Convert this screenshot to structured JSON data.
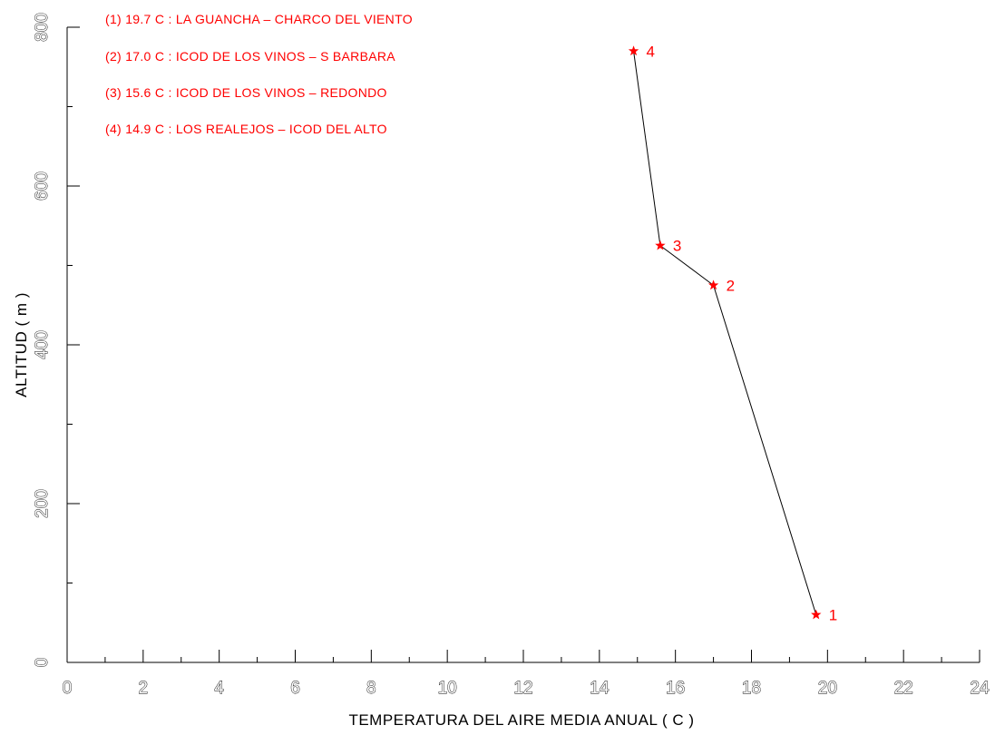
{
  "chart_data": {
    "type": "line",
    "title": "",
    "xlabel": "TEMPERATURA DEL AIRE MEDIA ANUAL ( C )",
    "ylabel": "ALTITUD ( m )",
    "xlim": [
      0,
      24
    ],
    "ylim": [
      0,
      800
    ],
    "x_ticks": [
      0,
      2,
      4,
      6,
      8,
      10,
      12,
      14,
      16,
      18,
      20,
      22,
      24
    ],
    "x_tick_labels": [
      "0",
      "2",
      "4",
      "6",
      "8",
      "10",
      "12",
      "14",
      "16",
      "18",
      "20",
      "22",
      "24"
    ],
    "x_minor_ticks": [
      1,
      3,
      5,
      7,
      9,
      11,
      13,
      15,
      17,
      19,
      21,
      23
    ],
    "y_ticks": [
      0,
      200,
      400,
      600,
      800
    ],
    "y_tick_labels": [
      "0",
      "200",
      "400",
      "600",
      "800"
    ],
    "y_minor_ticks": [
      100,
      300,
      500,
      700
    ],
    "grid": false,
    "legend_position": "top-left",
    "legend": [
      "(1) 19.7  C : LA GUANCHA – CHARCO DEL VIENTO",
      "(2) 17.0  C : ICOD DE LOS VINOS – S BARBARA",
      "(3) 15.6  C : ICOD DE LOS VINOS – REDONDO",
      "(4) 14.9  C : LOS REALEJOS – ICOD DEL ALTO"
    ],
    "series": [
      {
        "points": [
          {
            "label": "1",
            "x": 19.7,
            "y": 60
          },
          {
            "label": "2",
            "x": 17.0,
            "y": 475
          },
          {
            "label": "3",
            "x": 15.6,
            "y": 525
          },
          {
            "label": "4",
            "x": 14.9,
            "y": 770
          }
        ],
        "line_color": "#000000",
        "marker_color": "#ff0000",
        "marker": "star"
      }
    ],
    "colors": {
      "axis": "#000000",
      "legend_text": "#ff0000",
      "point_label": "#ff0000",
      "tick_label_fill": "#ffffff",
      "tick_label_outline": "#000000"
    }
  }
}
